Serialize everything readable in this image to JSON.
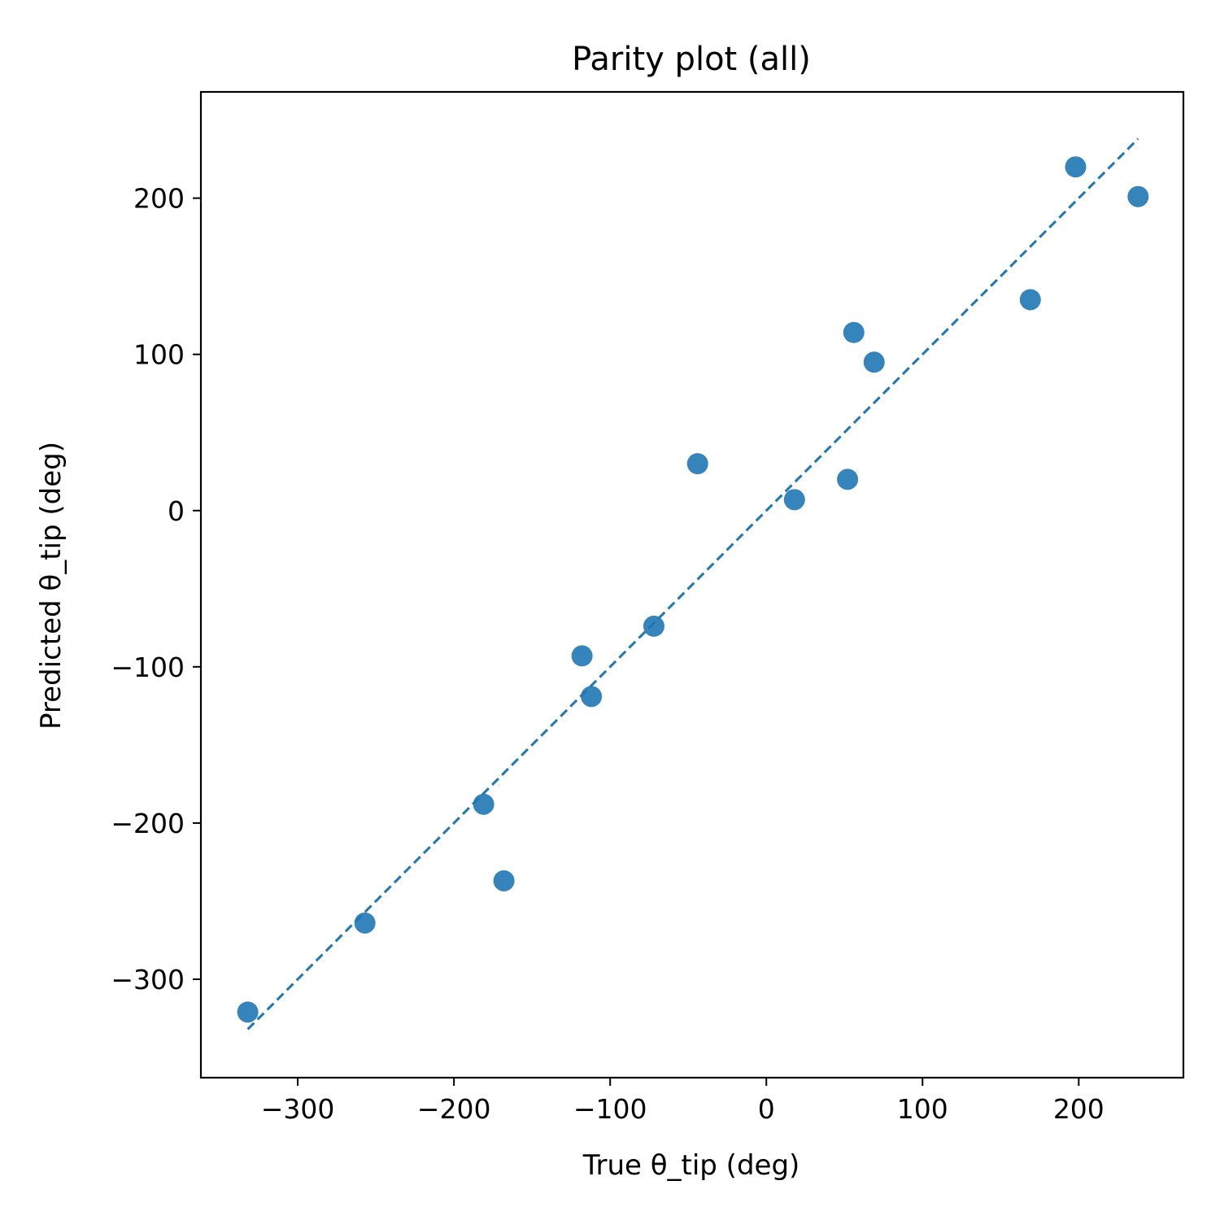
{
  "chart_data": {
    "type": "scatter",
    "title": "Parity plot (all)",
    "xlabel": "True θ_tip (deg)",
    "ylabel": "Predicted θ_tip (deg)",
    "xlim": [
      -362,
      267
    ],
    "ylim": [
      -363,
      268
    ],
    "xticks": [
      -300,
      -200,
      -100,
      0,
      100,
      200
    ],
    "yticks": [
      -300,
      -200,
      -100,
      0,
      100,
      200
    ],
    "xtick_labels": [
      "−300",
      "−200",
      "−100",
      "0",
      "100",
      "200"
    ],
    "ytick_labels": [
      "−300",
      "−200",
      "−100",
      "0",
      "100",
      "200"
    ],
    "grid": false,
    "legend": "none",
    "colors": {
      "points": "#1f77b4",
      "reference_line": "#1f77b4"
    },
    "reference_line": {
      "style": "dashed",
      "x": [
        -332,
        238
      ],
      "y": [
        -332,
        238
      ]
    },
    "series": [
      {
        "x": [
          -332,
          -257,
          -181,
          -168,
          -118,
          -112,
          -72,
          -44,
          18,
          52,
          56,
          69,
          169,
          198,
          238
        ],
        "y": [
          -321,
          -264,
          -188,
          -237,
          -93,
          -119,
          -74,
          30,
          7,
          20,
          114,
          95,
          135,
          220,
          201
        ]
      }
    ]
  }
}
